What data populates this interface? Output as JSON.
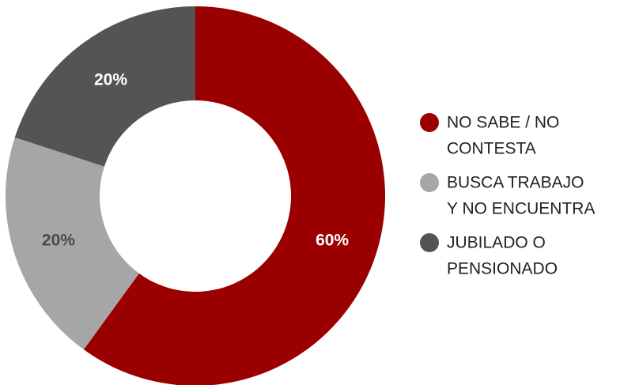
{
  "chart_data": {
    "type": "pie",
    "variant": "donut",
    "categories": [
      "NO SABE / NO CONTESTA",
      "BUSCA TRABAJO Y NO ENCUENTRA",
      "JUBILADO O PENSIONADO"
    ],
    "values": [
      60,
      20,
      20
    ],
    "value_labels": [
      "60%",
      "20%",
      "20%"
    ],
    "colors": [
      "#9b0000",
      "#a6a6a6",
      "#545454"
    ],
    "label_colors": [
      "#ffffff",
      "#4a4a4a",
      "#ffffff"
    ],
    "legend": {
      "placement": "right",
      "entries": [
        {
          "lines": [
            "NO SABE / NO",
            "CONTESTA"
          ],
          "color": "#9b0000"
        },
        {
          "lines": [
            "BUSCA TRABAJO",
            "Y NO ENCUENTRA"
          ],
          "color": "#a6a6a6"
        },
        {
          "lines": [
            "JUBILADO O",
            "PENSIONADO"
          ],
          "color": "#545454"
        }
      ]
    },
    "start_angle_deg": 0,
    "direction": "clockwise"
  }
}
